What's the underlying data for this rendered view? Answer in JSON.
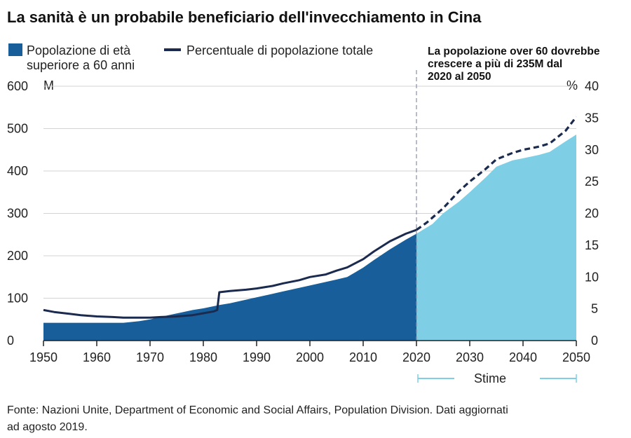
{
  "chart_data": {
    "type": "area",
    "title": "La sanità è un probabile beneficiario dell'invecchiamento in Cina",
    "legend": {
      "area_label_line1": "Popolazione di età",
      "area_label_line2": "superiore a 60 anni",
      "line_label": "Percentuale di popolazione totale"
    },
    "annotation": {
      "line1": "La popolazione over 60 dovrebbe",
      "line2": "crescere a più di 235M dal",
      "line3": "2020 al 2050"
    },
    "y_left": {
      "unit": "M",
      "range": [
        0,
        600
      ],
      "ticks": [
        "0",
        "100",
        "200",
        "300",
        "400",
        "500",
        "600"
      ]
    },
    "y_right": {
      "unit": "%",
      "range": [
        0,
        40
      ],
      "ticks": [
        "0",
        "5",
        "10",
        "15",
        "20",
        "25",
        "30",
        "35",
        "40"
      ]
    },
    "x_axis": {
      "range": [
        1950,
        2050
      ],
      "ticks": [
        "1950",
        "1960",
        "1970",
        "1980",
        "1990",
        "2000",
        "2010",
        "2020",
        "2030",
        "2040",
        "2050"
      ]
    },
    "projection_start": 2020,
    "projection_label": "Stime",
    "colors": {
      "historical_area": "#175e9a",
      "projected_area": "#7ecfe5",
      "line": "#1b2b4f",
      "grid": "#d3d3d3",
      "divider": "#8a8fa3"
    },
    "series": [
      {
        "name": "Popolazione di età superiore a 60 anni",
        "unit": "M",
        "x": [
          1950,
          1955,
          1960,
          1965,
          1968,
          1970,
          1972,
          1975,
          1978,
          1980,
          1983,
          1985,
          1990,
          1995,
          2000,
          2005,
          2007,
          2010,
          2012,
          2015,
          2018,
          2020,
          2023,
          2025,
          2028,
          2030,
          2033,
          2035,
          2038,
          2040,
          2043,
          2045,
          2048,
          2050
        ],
        "values": [
          42,
          42,
          42,
          42,
          46,
          50,
          56,
          64,
          72,
          76,
          84,
          88,
          102,
          116,
          130,
          144,
          150,
          172,
          190,
          215,
          238,
          252,
          275,
          300,
          328,
          350,
          385,
          410,
          425,
          430,
          438,
          445,
          470,
          486
        ]
      },
      {
        "name": "Percentuale di popolazione totale",
        "unit": "%",
        "x": [
          1950,
          1952,
          1955,
          1957,
          1960,
          1963,
          1965,
          1968,
          1970,
          1972,
          1975,
          1978,
          1980,
          1982,
          1982.6,
          1983,
          1985,
          1988,
          1990,
          1993,
          1995,
          1998,
          2000,
          2003,
          2005,
          2007,
          2010,
          2012,
          2015,
          2018,
          2020,
          2022,
          2025,
          2028,
          2030,
          2033,
          2035,
          2038,
          2040,
          2043,
          2045,
          2048,
          2050
        ],
        "values": [
          4.8,
          4.5,
          4.2,
          4.0,
          3.8,
          3.7,
          3.6,
          3.6,
          3.6,
          3.7,
          3.8,
          4.0,
          4.3,
          4.6,
          4.8,
          7.6,
          7.8,
          8.0,
          8.2,
          8.6,
          9.0,
          9.5,
          10.0,
          10.4,
          11.0,
          11.5,
          12.8,
          14.0,
          15.6,
          16.8,
          17.4,
          18.6,
          20.8,
          23.5,
          25.0,
          27.0,
          28.5,
          29.5,
          30.0,
          30.5,
          31.0,
          33.0,
          35.2
        ]
      }
    ],
    "source_line1": "Fonte: Nazioni Unite, Department of Economic and Social Affairs, Population Division. Dati aggiornati",
    "source_line2": "ad agosto 2019."
  }
}
